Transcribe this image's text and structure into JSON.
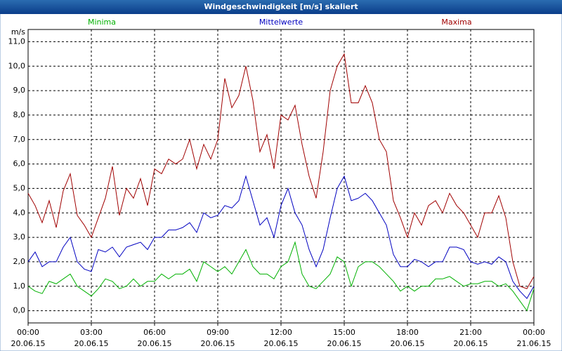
{
  "chart_data": {
    "type": "line",
    "title": "Windgeschwindigkeit [m/s] skaliert",
    "y_label": "m/s",
    "x": [
      0,
      20,
      40,
      60,
      80,
      100,
      120,
      140,
      160,
      180,
      200,
      220,
      240,
      260,
      280,
      300,
      320,
      340,
      360,
      380,
      400,
      420,
      440,
      460,
      480,
      500,
      520,
      540,
      560,
      580,
      600,
      620,
      640,
      660,
      680,
      700,
      720,
      740,
      760,
      780,
      800,
      820,
      840,
      860,
      880,
      900,
      920,
      940,
      960,
      980,
      1000,
      1020,
      1040,
      1060,
      1080,
      1100,
      1120,
      1140,
      1160,
      1180,
      1200,
      1220,
      1240,
      1260,
      1280,
      1300,
      1320,
      1340,
      1360,
      1380,
      1400,
      1420,
      1440
    ],
    "series": [
      {
        "name": "Minima",
        "color": "#00b000",
        "values": [
          1.0,
          0.8,
          0.7,
          1.2,
          1.1,
          1.3,
          1.5,
          1.0,
          0.8,
          0.6,
          0.9,
          1.3,
          1.2,
          0.9,
          1.0,
          1.3,
          1.0,
          1.2,
          1.2,
          1.5,
          1.3,
          1.5,
          1.5,
          1.7,
          1.2,
          2.0,
          1.8,
          1.6,
          1.8,
          1.5,
          2.0,
          2.5,
          1.8,
          1.5,
          1.5,
          1.3,
          1.8,
          2.0,
          2.8,
          1.5,
          1.0,
          0.9,
          1.2,
          1.5,
          2.2,
          2.0,
          1.0,
          1.8,
          2.0,
          2.0,
          1.8,
          1.5,
          1.2,
          0.8,
          1.0,
          0.8,
          1.0,
          1.0,
          1.3,
          1.3,
          1.4,
          1.2,
          1.0,
          1.1,
          1.1,
          1.2,
          1.2,
          1.0,
          1.1,
          0.8,
          0.4,
          0.0,
          0.9
        ]
      },
      {
        "name": "Mittelwerte",
        "color": "#0000c0",
        "values": [
          2.0,
          2.4,
          1.8,
          2.0,
          2.0,
          2.6,
          3.0,
          2.0,
          1.7,
          1.6,
          2.5,
          2.4,
          2.6,
          2.2,
          2.6,
          2.7,
          2.8,
          2.5,
          3.0,
          3.0,
          3.3,
          3.3,
          3.4,
          3.6,
          3.2,
          4.0,
          3.8,
          3.9,
          4.3,
          4.2,
          4.5,
          5.5,
          4.5,
          3.5,
          3.8,
          3.0,
          4.3,
          5.0,
          4.0,
          3.5,
          2.5,
          1.8,
          2.5,
          3.8,
          5.0,
          5.5,
          4.5,
          4.6,
          4.8,
          4.5,
          4.0,
          3.5,
          2.3,
          1.8,
          1.8,
          2.1,
          2.0,
          1.8,
          2.0,
          2.0,
          2.6,
          2.6,
          2.5,
          2.0,
          1.9,
          2.0,
          1.9,
          2.2,
          2.0,
          1.2,
          0.8,
          0.5,
          1.0
        ]
      },
      {
        "name": "Maxima",
        "color": "#a00000",
        "values": [
          4.8,
          4.3,
          3.6,
          4.5,
          3.4,
          4.9,
          5.6,
          3.9,
          3.5,
          3.0,
          3.8,
          4.6,
          5.9,
          3.9,
          5.0,
          4.6,
          5.4,
          4.3,
          5.8,
          5.6,
          6.2,
          6.0,
          6.2,
          7.0,
          5.8,
          6.8,
          6.2,
          7.0,
          9.5,
          8.3,
          8.8,
          10.0,
          8.6,
          6.5,
          7.2,
          5.8,
          8.0,
          7.8,
          8.4,
          6.8,
          5.5,
          4.6,
          6.5,
          9.0,
          10.0,
          10.5,
          8.5,
          8.5,
          9.2,
          8.5,
          7.0,
          6.5,
          4.5,
          3.8,
          3.0,
          4.0,
          3.5,
          4.3,
          4.5,
          4.0,
          4.8,
          4.3,
          4.0,
          3.5,
          3.0,
          4.0,
          4.0,
          4.7,
          3.8,
          2.0,
          1.0,
          0.9,
          1.4
        ]
      }
    ],
    "xlim": [
      0,
      1440
    ],
    "xticks": [
      {
        "value": 0,
        "label": "00:00"
      },
      {
        "value": 180,
        "label": "03:00"
      },
      {
        "value": 360,
        "label": "06:00"
      },
      {
        "value": 540,
        "label": "09:00"
      },
      {
        "value": 720,
        "label": "12:00"
      },
      {
        "value": 900,
        "label": "15:00"
      },
      {
        "value": 1080,
        "label": "18:00"
      },
      {
        "value": 1260,
        "label": "21:00"
      },
      {
        "value": 1440,
        "label": "00:00"
      }
    ],
    "xtick_dates": [
      "20.06.15",
      "20.06.15",
      "20.06.15",
      "20.06.15",
      "20.06.15",
      "20.06.15",
      "20.06.15",
      "20.06.15",
      "21.06.15"
    ],
    "ylim": [
      -0.5,
      11.5
    ],
    "yticks": [
      {
        "value": 0,
        "label": "0,0"
      },
      {
        "value": 1,
        "label": "1,0"
      },
      {
        "value": 2,
        "label": "2,0"
      },
      {
        "value": 3,
        "label": "3,0"
      },
      {
        "value": 4,
        "label": "4,0"
      },
      {
        "value": 5,
        "label": "5,0"
      },
      {
        "value": 6,
        "label": "6,0"
      },
      {
        "value": 7,
        "label": "7,0"
      },
      {
        "value": 8,
        "label": "8,0"
      },
      {
        "value": 9,
        "label": "9,0"
      },
      {
        "value": 10,
        "label": "10,0"
      },
      {
        "value": 11,
        "label": "11,0"
      }
    ],
    "grid": true
  }
}
